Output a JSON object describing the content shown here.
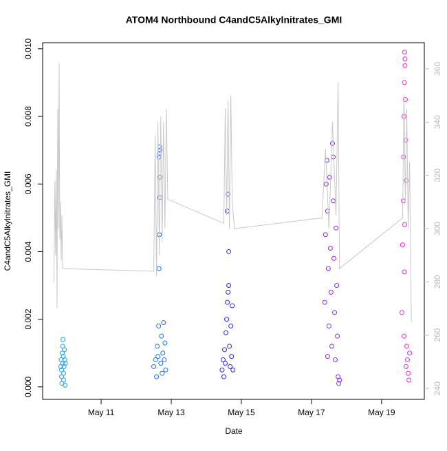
{
  "chart_data": {
    "type": "scatter",
    "title": "ATOM4 Northbound C4andC5Alkylnitrates_GMI",
    "x_label": "Date",
    "y_label": "C4andC5Alkylnitrates_GMI",
    "xlim": [
      9.33,
      20.22
    ],
    "ylim": [
      -0.00037,
      0.01018
    ],
    "y2lim": [
      235.9,
      369.8
    ],
    "xticks": [
      {
        "value": 11,
        "label": "May 11"
      },
      {
        "value": 13,
        "label": "May 13"
      },
      {
        "value": 15,
        "label": "May 15"
      },
      {
        "value": 17,
        "label": "May 17"
      },
      {
        "value": 19,
        "label": "May 19"
      }
    ],
    "yticks": [
      {
        "value": 0,
        "label": "0.000"
      },
      {
        "value": 0.002,
        "label": "0.002"
      },
      {
        "value": 0.004,
        "label": "0.004"
      },
      {
        "value": 0.006,
        "label": "0.006"
      },
      {
        "value": 0.008,
        "label": "0.008"
      },
      {
        "value": 0.01,
        "label": "0.010"
      }
    ],
    "y2ticks": [
      240,
      260,
      280,
      300,
      320,
      340,
      360
    ],
    "y2_color": "#bbbbbb",
    "series": [
      {
        "color": "#1e9cf0",
        "x": [
          9.85,
          9.86,
          9.87,
          9.87,
          9.88,
          9.89,
          9.9,
          9.9,
          9.91,
          9.92,
          9.93,
          9.93,
          9.94,
          9.95,
          9.96,
          9.97,
          9.98
        ],
        "values": [
          0.0006,
          0.0008,
          0.0005,
          0.0003,
          0.0001,
          0.001,
          0.0007,
          0.0012,
          0.0014,
          0.0009,
          0.0004,
          0.0002,
          0.0006,
          0.0011,
          0.0008,
          5e-05,
          0.0007
        ]
      },
      {
        "color": "#1c6cf0",
        "x": [
          12.5,
          12.55,
          12.58,
          12.6,
          12.62,
          12.64,
          12.65,
          12.66,
          12.67,
          12.68,
          12.7,
          12.72,
          12.74,
          12.76,
          12.78,
          12.8,
          12.82,
          12.84,
          12.65,
          12.66,
          12.67,
          12.68
        ],
        "values": [
          0.0006,
          0.0008,
          0.0003,
          0.0012,
          0.0009,
          0.0018,
          0.0035,
          0.0045,
          0.0056,
          0.0062,
          0.0007,
          0.0015,
          0.0004,
          0.001,
          0.0019,
          0.0008,
          0.0013,
          0.0005,
          0.0068,
          0.0069,
          0.0071,
          0.007
        ]
      },
      {
        "color": "#2424f0",
        "x": [
          14.45,
          14.48,
          14.5,
          14.52,
          14.54,
          14.56,
          14.58,
          14.6,
          14.62,
          14.64,
          14.66,
          14.68,
          14.7,
          14.72,
          14.74,
          14.76,
          14.6,
          14.62,
          14.64
        ],
        "values": [
          0.0005,
          0.0008,
          0.0003,
          0.0011,
          0.0007,
          0.0016,
          0.002,
          0.0025,
          0.0028,
          0.003,
          0.0012,
          0.0006,
          0.0018,
          0.0009,
          0.0024,
          0.0005,
          0.0052,
          0.0057,
          0.004
        ]
      },
      {
        "color": "#8a22f0",
        "x": [
          17.38,
          17.4,
          17.42,
          17.44,
          17.46,
          17.48,
          17.5,
          17.52,
          17.54,
          17.56,
          17.58,
          17.6,
          17.62,
          17.64,
          17.66,
          17.68,
          17.7,
          17.72,
          17.74,
          17.76,
          17.78,
          17.8,
          17.46,
          17.62
        ],
        "values": [
          0.0025,
          0.0045,
          0.006,
          0.0067,
          0.0052,
          0.0035,
          0.0018,
          0.0062,
          0.0041,
          0.0028,
          0.0012,
          0.0072,
          0.0055,
          0.0038,
          0.0022,
          0.0008,
          0.0047,
          0.003,
          0.0015,
          0.0003,
          0.0001,
          0.0002,
          0.0009,
          0.0068
        ]
      },
      {
        "color": "#f022d4",
        "x": [
          19.58,
          19.6,
          19.62,
          19.63,
          19.64,
          19.65,
          19.66,
          19.67,
          19.68,
          19.69,
          19.7,
          19.72,
          19.74,
          19.76,
          19.78,
          19.8,
          19.64,
          19.65,
          19.66,
          19.67,
          19.7
        ],
        "values": [
          0.0022,
          0.0042,
          0.0055,
          0.0068,
          0.008,
          0.009,
          0.0099,
          0.0097,
          0.0085,
          0.0073,
          0.0061,
          0.0012,
          0.0008,
          0.0004,
          0.0002,
          0.001,
          0.0015,
          0.0034,
          0.0048,
          0.0095,
          0.0006
        ]
      },
      {
        "type": "line",
        "axis": "y2",
        "color": "#c8c8c8",
        "x": [
          9.65,
          9.68,
          9.7,
          9.72,
          9.74,
          9.76,
          9.78,
          9.8,
          9.82,
          9.84,
          9.86,
          9.88,
          9.9,
          12.5,
          12.54,
          12.58,
          12.62,
          12.66,
          12.7,
          12.74,
          12.78,
          12.82,
          12.86,
          12.9,
          14.5,
          14.54,
          14.58,
          14.62,
          14.66,
          14.7,
          14.74,
          14.8,
          17.3,
          17.4,
          17.5,
          17.6,
          17.7,
          17.76,
          17.8,
          19.6,
          19.64,
          19.68,
          19.72,
          19.76,
          19.8,
          19.85
        ],
        "values": [
          280,
          318,
          290,
          322,
          270,
          345,
          300,
          362,
          296,
          310,
          288,
          305,
          285,
          284,
          335,
          282,
          340,
          290,
          342,
          295,
          340,
          300,
          345,
          311,
          302,
          345,
          305,
          348,
          300,
          350,
          310,
          300,
          304,
          330,
          300,
          340,
          305,
          355,
          285,
          304,
          350,
          310,
          345,
          300,
          325,
          265
        ]
      }
    ]
  }
}
